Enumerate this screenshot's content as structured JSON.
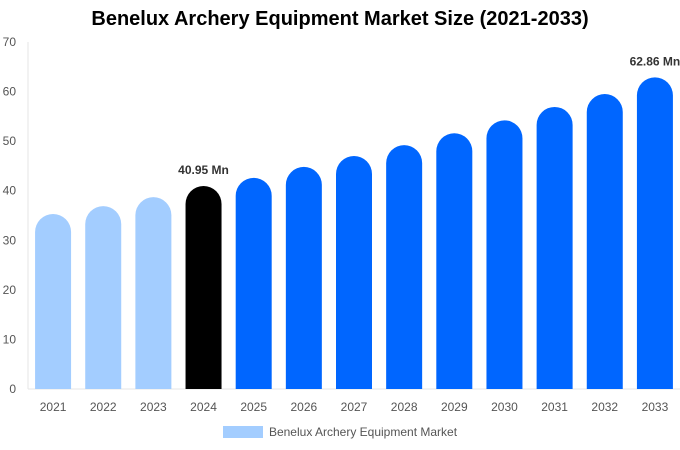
{
  "chart_data": {
    "type": "bar",
    "title": "Benelux Archery Equipment Market Size (2021-2033)",
    "categories": [
      "2021",
      "2022",
      "2023",
      "2024",
      "2025",
      "2026",
      "2027",
      "2028",
      "2029",
      "2030",
      "2031",
      "2032",
      "2033"
    ],
    "series": [
      {
        "name": "Benelux Archery Equipment Market",
        "values": [
          35.3,
          36.9,
          38.7,
          40.95,
          42.6,
          44.8,
          47.0,
          49.2,
          51.6,
          54.2,
          56.9,
          59.5,
          62.86
        ]
      }
    ],
    "data_labels": [
      {
        "category": "2024",
        "text": "40.95 Mn"
      },
      {
        "category": "2033",
        "text": "62.86 Mn"
      }
    ],
    "ylim": [
      0,
      70
    ],
    "yticks": [
      0,
      10,
      20,
      30,
      40,
      50,
      60,
      70
    ],
    "xlabel": "",
    "ylabel": "",
    "grid": false,
    "legend_position": "bottom",
    "colors": {
      "historical": "#a3cdff",
      "base_year": "#000000",
      "forecast": "#0066ff"
    }
  }
}
